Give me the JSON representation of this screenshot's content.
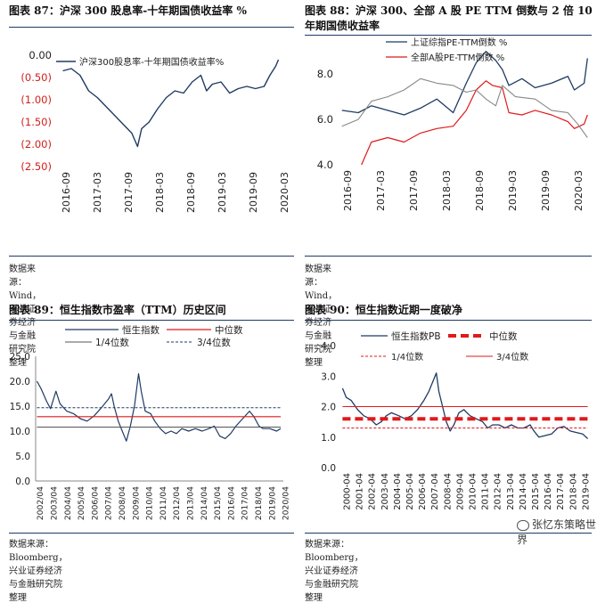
{
  "chart_data": [
    {
      "type": "line",
      "id": "p1",
      "title": "图表 87：沪深 300 股息率-十年期国债收益率 %",
      "source": "数据来源：Wind，兴业证券经济与金融研究院整理",
      "x_ticks": [
        "2016-09",
        "2017-03",
        "2017-09",
        "2018-03",
        "2018-09",
        "2019-03",
        "2019-09",
        "2020-03"
      ],
      "y_ticks": [
        "0.00",
        "(0.50)",
        "(1.00)",
        "(1.50)",
        "(2.00)",
        "(2.50)"
      ],
      "ylim": [
        -2.5,
        0
      ],
      "legend": "top-left",
      "series": [
        {
          "name": "沪深300股息率-十年期国债收益率%",
          "color": "#1f3b63",
          "x": [
            2016.55,
            2016.7,
            2016.85,
            2017.0,
            2017.15,
            2017.3,
            2017.45,
            2017.6,
            2017.75,
            2017.85,
            2017.92,
            2018.05,
            2018.2,
            2018.35,
            2018.5,
            2018.65,
            2018.8,
            2018.95,
            2019.05,
            2019.15,
            2019.3,
            2019.45,
            2019.6,
            2019.75,
            2019.9,
            2020.05,
            2020.15,
            2020.25,
            2020.3
          ],
          "y": [
            -0.35,
            -0.3,
            -0.45,
            -0.8,
            -0.95,
            -1.15,
            -1.35,
            -1.55,
            -1.75,
            -2.05,
            -1.65,
            -1.5,
            -1.2,
            -0.95,
            -0.8,
            -0.85,
            -0.6,
            -0.45,
            -0.8,
            -0.65,
            -0.6,
            -0.85,
            -0.75,
            -0.7,
            -0.75,
            -0.7,
            -0.45,
            -0.25,
            -0.1
          ]
        }
      ]
    },
    {
      "type": "line",
      "id": "p2",
      "title": "图表 88：沪深 300、全部 A 股 PE TTM 倒数与 2 倍 10 年期国债收益率",
      "source": "数据来源：Wind，兴业证券经济与金融研究院整理",
      "x_ticks": [
        "2016-09",
        "2017-03",
        "2017-09",
        "2018-03",
        "2018-09",
        "2019-03",
        "2019-09",
        "2020-03"
      ],
      "y_ticks": [
        "8.0",
        "6.0",
        "4.0"
      ],
      "ylim": [
        4,
        9.5
      ],
      "legend": "top-left",
      "series": [
        {
          "name": "上证综指PE-TTM倒数 %",
          "color": "#1f3b63",
          "x": [
            2016.55,
            2016.8,
            2017.0,
            2017.25,
            2017.5,
            2017.75,
            2018.0,
            2018.25,
            2018.45,
            2018.6,
            2018.75,
            2018.9,
            2019.0,
            2019.1,
            2019.3,
            2019.5,
            2019.75,
            2020.0,
            2020.1,
            2020.25,
            2020.3
          ],
          "y": [
            6.4,
            6.3,
            6.6,
            6.4,
            6.2,
            6.5,
            6.9,
            6.3,
            7.6,
            8.5,
            9.0,
            8.6,
            8.2,
            7.5,
            7.8,
            7.4,
            7.6,
            7.9,
            7.3,
            7.6,
            8.7
          ]
        },
        {
          "name": "全部A股PE-TTM倒数 %",
          "color": "#e0191a",
          "x": [
            2016.85,
            2017.0,
            2017.25,
            2017.5,
            2017.75,
            2018.0,
            2018.25,
            2018.45,
            2018.6,
            2018.75,
            2018.85,
            2019.0,
            2019.1,
            2019.3,
            2019.5,
            2019.75,
            2020.0,
            2020.1,
            2020.25,
            2020.3
          ],
          "y": [
            4.0,
            5.0,
            5.2,
            5.0,
            5.4,
            5.6,
            5.7,
            6.4,
            7.3,
            7.7,
            7.5,
            7.4,
            6.3,
            6.2,
            6.4,
            6.2,
            5.9,
            5.6,
            5.8,
            6.2
          ]
        },
        {
          "name": "",
          "color": "#888888",
          "x": [
            2016.55,
            2016.8,
            2017.0,
            2017.25,
            2017.5,
            2017.75,
            2018.0,
            2018.25,
            2018.45,
            2018.6,
            2018.75,
            2018.9,
            2019.0,
            2019.2,
            2019.5,
            2019.75,
            2020.0,
            2020.15,
            2020.3
          ],
          "y": [
            5.7,
            6.0,
            6.8,
            7.0,
            7.3,
            7.8,
            7.6,
            7.5,
            7.2,
            7.3,
            6.9,
            6.6,
            7.5,
            7.0,
            6.9,
            6.4,
            6.3,
            5.8,
            5.2
          ]
        }
      ]
    },
    {
      "type": "line",
      "id": "p3",
      "title": "图表 89：恒生指数市盈率（TTM）历史区间",
      "source": "数据来源：Bloomberg，兴业证券经济与金融研究院整理",
      "x_ticks": [
        "2002/04",
        "2003/04",
        "2004/04",
        "2005/04",
        "2006/04",
        "2007/04",
        "2008/04",
        "2009/04",
        "2010/04",
        "2011/04",
        "2012/04",
        "2013/04",
        "2014/04",
        "2015/04",
        "2016/04",
        "2017/04",
        "2018/04",
        "2019/04",
        "2020/04"
      ],
      "y_ticks": [
        "25.0",
        "20.0",
        "15.0",
        "10.0",
        "5.0",
        "0.0"
      ],
      "ylim": [
        0,
        25
      ],
      "legend": "top",
      "series": [
        {
          "name": "恒生指数",
          "color": "#1f3b63",
          "x": [
            2002.3,
            2002.6,
            2003.0,
            2003.3,
            2003.7,
            2004.0,
            2004.5,
            2005.0,
            2005.5,
            2006.0,
            2006.5,
            2007.0,
            2007.3,
            2007.6,
            2007.8,
            2008.0,
            2008.3,
            2008.6,
            2008.9,
            2009.2,
            2009.5,
            2009.8,
            2010.0,
            2010.3,
            2010.7,
            2011.0,
            2011.4,
            2011.8,
            2012.2,
            2012.6,
            2013.0,
            2013.5,
            2014.0,
            2014.5,
            2015.0,
            2015.4,
            2015.8,
            2016.2,
            2016.6,
            2017.0,
            2017.5,
            2018.0,
            2018.3,
            2018.7,
            2019.0,
            2019.5,
            2020.0,
            2020.3
          ],
          "y": [
            20.0,
            18.5,
            16.0,
            14.5,
            18.0,
            15.5,
            14.0,
            13.5,
            12.5,
            12.0,
            13.0,
            14.5,
            15.5,
            16.5,
            17.5,
            15.0,
            12.0,
            10.0,
            8.0,
            11.0,
            15.0,
            21.5,
            18.0,
            14.0,
            13.5,
            12.0,
            10.5,
            9.5,
            10.0,
            9.5,
            10.5,
            10.0,
            10.5,
            10.0,
            10.5,
            11.0,
            9.0,
            8.5,
            9.5,
            11.0,
            12.5,
            14.0,
            13.0,
            11.0,
            10.5,
            10.5,
            10.0,
            10.5
          ]
        },
        {
          "name": "中位数",
          "color": "#e0191a",
          "x": [
            2002.3,
            2020.3
          ],
          "y": [
            12.9,
            12.9
          ]
        },
        {
          "name": "1/4位数",
          "color": "#555555",
          "x": [
            2002.3,
            2020.3
          ],
          "y": [
            10.8,
            10.8
          ]
        },
        {
          "name": "3/4位数",
          "color": "#1f3b63",
          "x": [
            2002.3,
            2020.3
          ],
          "y": [
            14.7,
            14.7
          ]
        }
      ]
    },
    {
      "type": "line",
      "id": "p4",
      "title": "图表 90：恒生指数近期一度破净",
      "source": "数据来源：Bloomberg，兴业证券经济与金融研究院整理",
      "x_ticks": [
        "2000-04",
        "2001-04",
        "2002-04",
        "2003-04",
        "2004-04",
        "2005-04",
        "2006-04",
        "2007-04",
        "2008-04",
        "2009-04",
        "2010-04",
        "2011-04",
        "2012-04",
        "2013-04",
        "2014-04",
        "2015-04",
        "2016-04",
        "2017-04",
        "2018-04",
        "2019-04"
      ],
      "y_ticks": [
        "4.0",
        "3.0",
        "2.0",
        "1.0",
        "0.0"
      ],
      "ylim": [
        0,
        4
      ],
      "legend": "top",
      "series": [
        {
          "name": "恒生指数PB",
          "color": "#1f3b63",
          "x": [
            2000.3,
            2000.6,
            2001.0,
            2001.5,
            2002.0,
            2002.5,
            2003.0,
            2003.4,
            2003.8,
            2004.2,
            2004.8,
            2005.3,
            2005.8,
            2006.3,
            2006.8,
            2007.2,
            2007.5,
            2007.8,
            2008.0,
            2008.3,
            2008.6,
            2008.9,
            2009.2,
            2009.6,
            2010.0,
            2010.5,
            2011.0,
            2011.5,
            2011.9,
            2012.3,
            2012.8,
            2013.3,
            2013.8,
            2014.3,
            2014.8,
            2015.3,
            2015.6,
            2016.0,
            2016.5,
            2017.0,
            2017.5,
            2018.0,
            2018.5,
            2019.0,
            2019.5,
            2019.9
          ],
          "y": [
            2.6,
            2.3,
            2.2,
            1.9,
            1.7,
            1.6,
            1.4,
            1.5,
            1.7,
            1.8,
            1.7,
            1.6,
            1.7,
            1.9,
            2.2,
            2.5,
            2.8,
            3.1,
            2.5,
            2.0,
            1.5,
            1.2,
            1.4,
            1.8,
            1.9,
            1.7,
            1.6,
            1.5,
            1.3,
            1.4,
            1.4,
            1.3,
            1.4,
            1.3,
            1.3,
            1.4,
            1.2,
            1.0,
            1.05,
            1.1,
            1.3,
            1.35,
            1.2,
            1.15,
            1.1,
            0.95
          ]
        },
        {
          "name": "中位数",
          "color": "#e0191a",
          "x": [
            2000.3,
            2019.9
          ],
          "y": [
            1.6,
            1.6
          ]
        },
        {
          "name": "1/4位数",
          "color": "#e0191a",
          "x": [
            2000.3,
            2019.9
          ],
          "y": [
            1.3,
            1.3
          ]
        },
        {
          "name": "3/4位数",
          "color": "#e0191a",
          "x": [
            2000.3,
            2019.9
          ],
          "y": [
            2.0,
            2.0
          ]
        }
      ]
    }
  ],
  "watermark": "张忆东策略世界"
}
